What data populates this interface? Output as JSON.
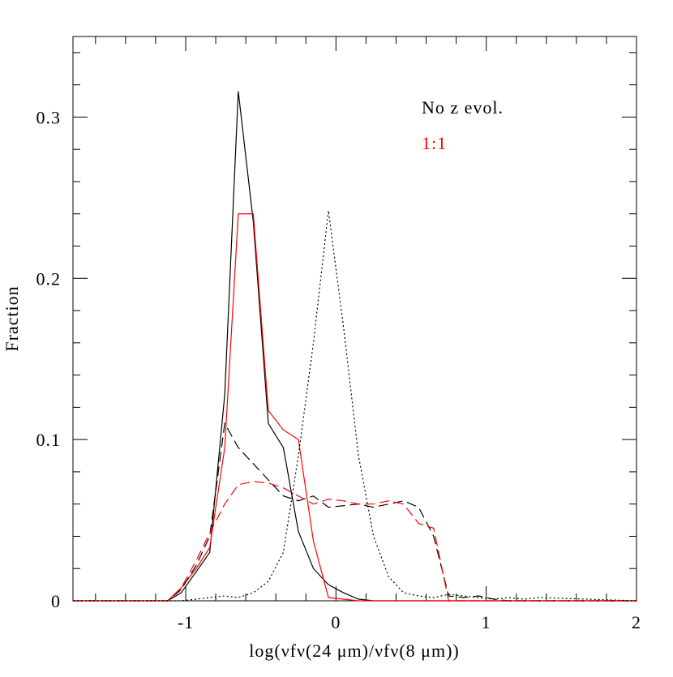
{
  "chart_data": {
    "type": "line",
    "xlabel": "log(νfν(24 μm)/νfν(8 μm))",
    "ylabel": "Fraction",
    "annotations": [
      {
        "text": "No z evol.",
        "color": "#000000"
      },
      {
        "text": "1:1",
        "color": "#ff0000"
      }
    ],
    "x": [
      -1.75,
      -1.12,
      -1.03,
      -0.93,
      -0.84,
      -0.74,
      -0.65,
      -0.55,
      -0.45,
      -0.35,
      -0.25,
      -0.15,
      -0.05,
      0.05,
      0.15,
      0.25,
      0.35,
      0.45,
      0.55,
      0.65,
      0.75,
      0.85,
      0.95,
      1.05,
      1.15,
      1.25,
      1.35,
      2
    ],
    "series": [
      {
        "color": "#000000",
        "style": "solid",
        "values": [
          0,
          0,
          0.005,
          0.018,
          0.03,
          0.128,
          0.316,
          0.235,
          0.11,
          0.095,
          0.043,
          0.02,
          0.01,
          0.005,
          0.001,
          0,
          0,
          0,
          0,
          0,
          0,
          0,
          0,
          0,
          0,
          0,
          0,
          0
        ]
      },
      {
        "color": "#ff0000",
        "style": "solid",
        "values": [
          0,
          0,
          0.008,
          0.02,
          0.033,
          0.095,
          0.24,
          0.24,
          0.118,
          0.106,
          0.1,
          0.037,
          0.002,
          0.001,
          0,
          0,
          0,
          0,
          0,
          0,
          0,
          0,
          0,
          0,
          0,
          0,
          0,
          0
        ]
      },
      {
        "color": "#000000",
        "style": "dashed",
        "values": [
          0,
          0,
          0.007,
          0.022,
          0.04,
          0.11,
          0.095,
          0.085,
          0.075,
          0.065,
          0.062,
          0.065,
          0.058,
          0.059,
          0.06,
          0.058,
          0.06,
          0.062,
          0.058,
          0.04,
          0.003,
          0.002,
          0.003,
          0.001,
          0,
          0,
          0,
          0
        ]
      },
      {
        "color": "#ff0000",
        "style": "dashed",
        "values": [
          0,
          0,
          0.008,
          0.025,
          0.042,
          0.06,
          0.072,
          0.074,
          0.073,
          0.07,
          0.065,
          0.06,
          0.063,
          0.062,
          0.06,
          0.06,
          0.062,
          0.06,
          0.048,
          0.045,
          0,
          0,
          0,
          0,
          0,
          0,
          0,
          0
        ]
      },
      {
        "color": "#000000",
        "style": "dotted",
        "values": [
          0,
          0,
          0,
          0.001,
          0.002,
          0.003,
          0.002,
          0.005,
          0.012,
          0.03,
          0.09,
          0.16,
          0.242,
          0.17,
          0.09,
          0.04,
          0.015,
          0.005,
          0.003,
          0.002,
          0.004,
          0.003,
          0.002,
          0.001,
          0.002,
          0.001,
          0.002,
          0
        ]
      }
    ],
    "xlim": [
      -1.75,
      2
    ],
    "ylim": [
      0,
      0.35
    ],
    "xticks": [
      -1,
      0,
      1,
      2
    ],
    "yticks": [
      0,
      0.1,
      0.2,
      0.3
    ],
    "xminorticks": [
      -1.6,
      -1.4,
      -1.2,
      -0.8,
      -0.6,
      -0.4,
      -0.2,
      0.2,
      0.4,
      0.6,
      0.8,
      1.2,
      1.4,
      1.6,
      1.8
    ],
    "yminorticks": [
      0.02,
      0.04,
      0.06,
      0.08,
      0.12,
      0.14,
      0.16,
      0.18,
      0.22,
      0.24,
      0.26,
      0.28,
      0.32,
      0.34
    ]
  }
}
